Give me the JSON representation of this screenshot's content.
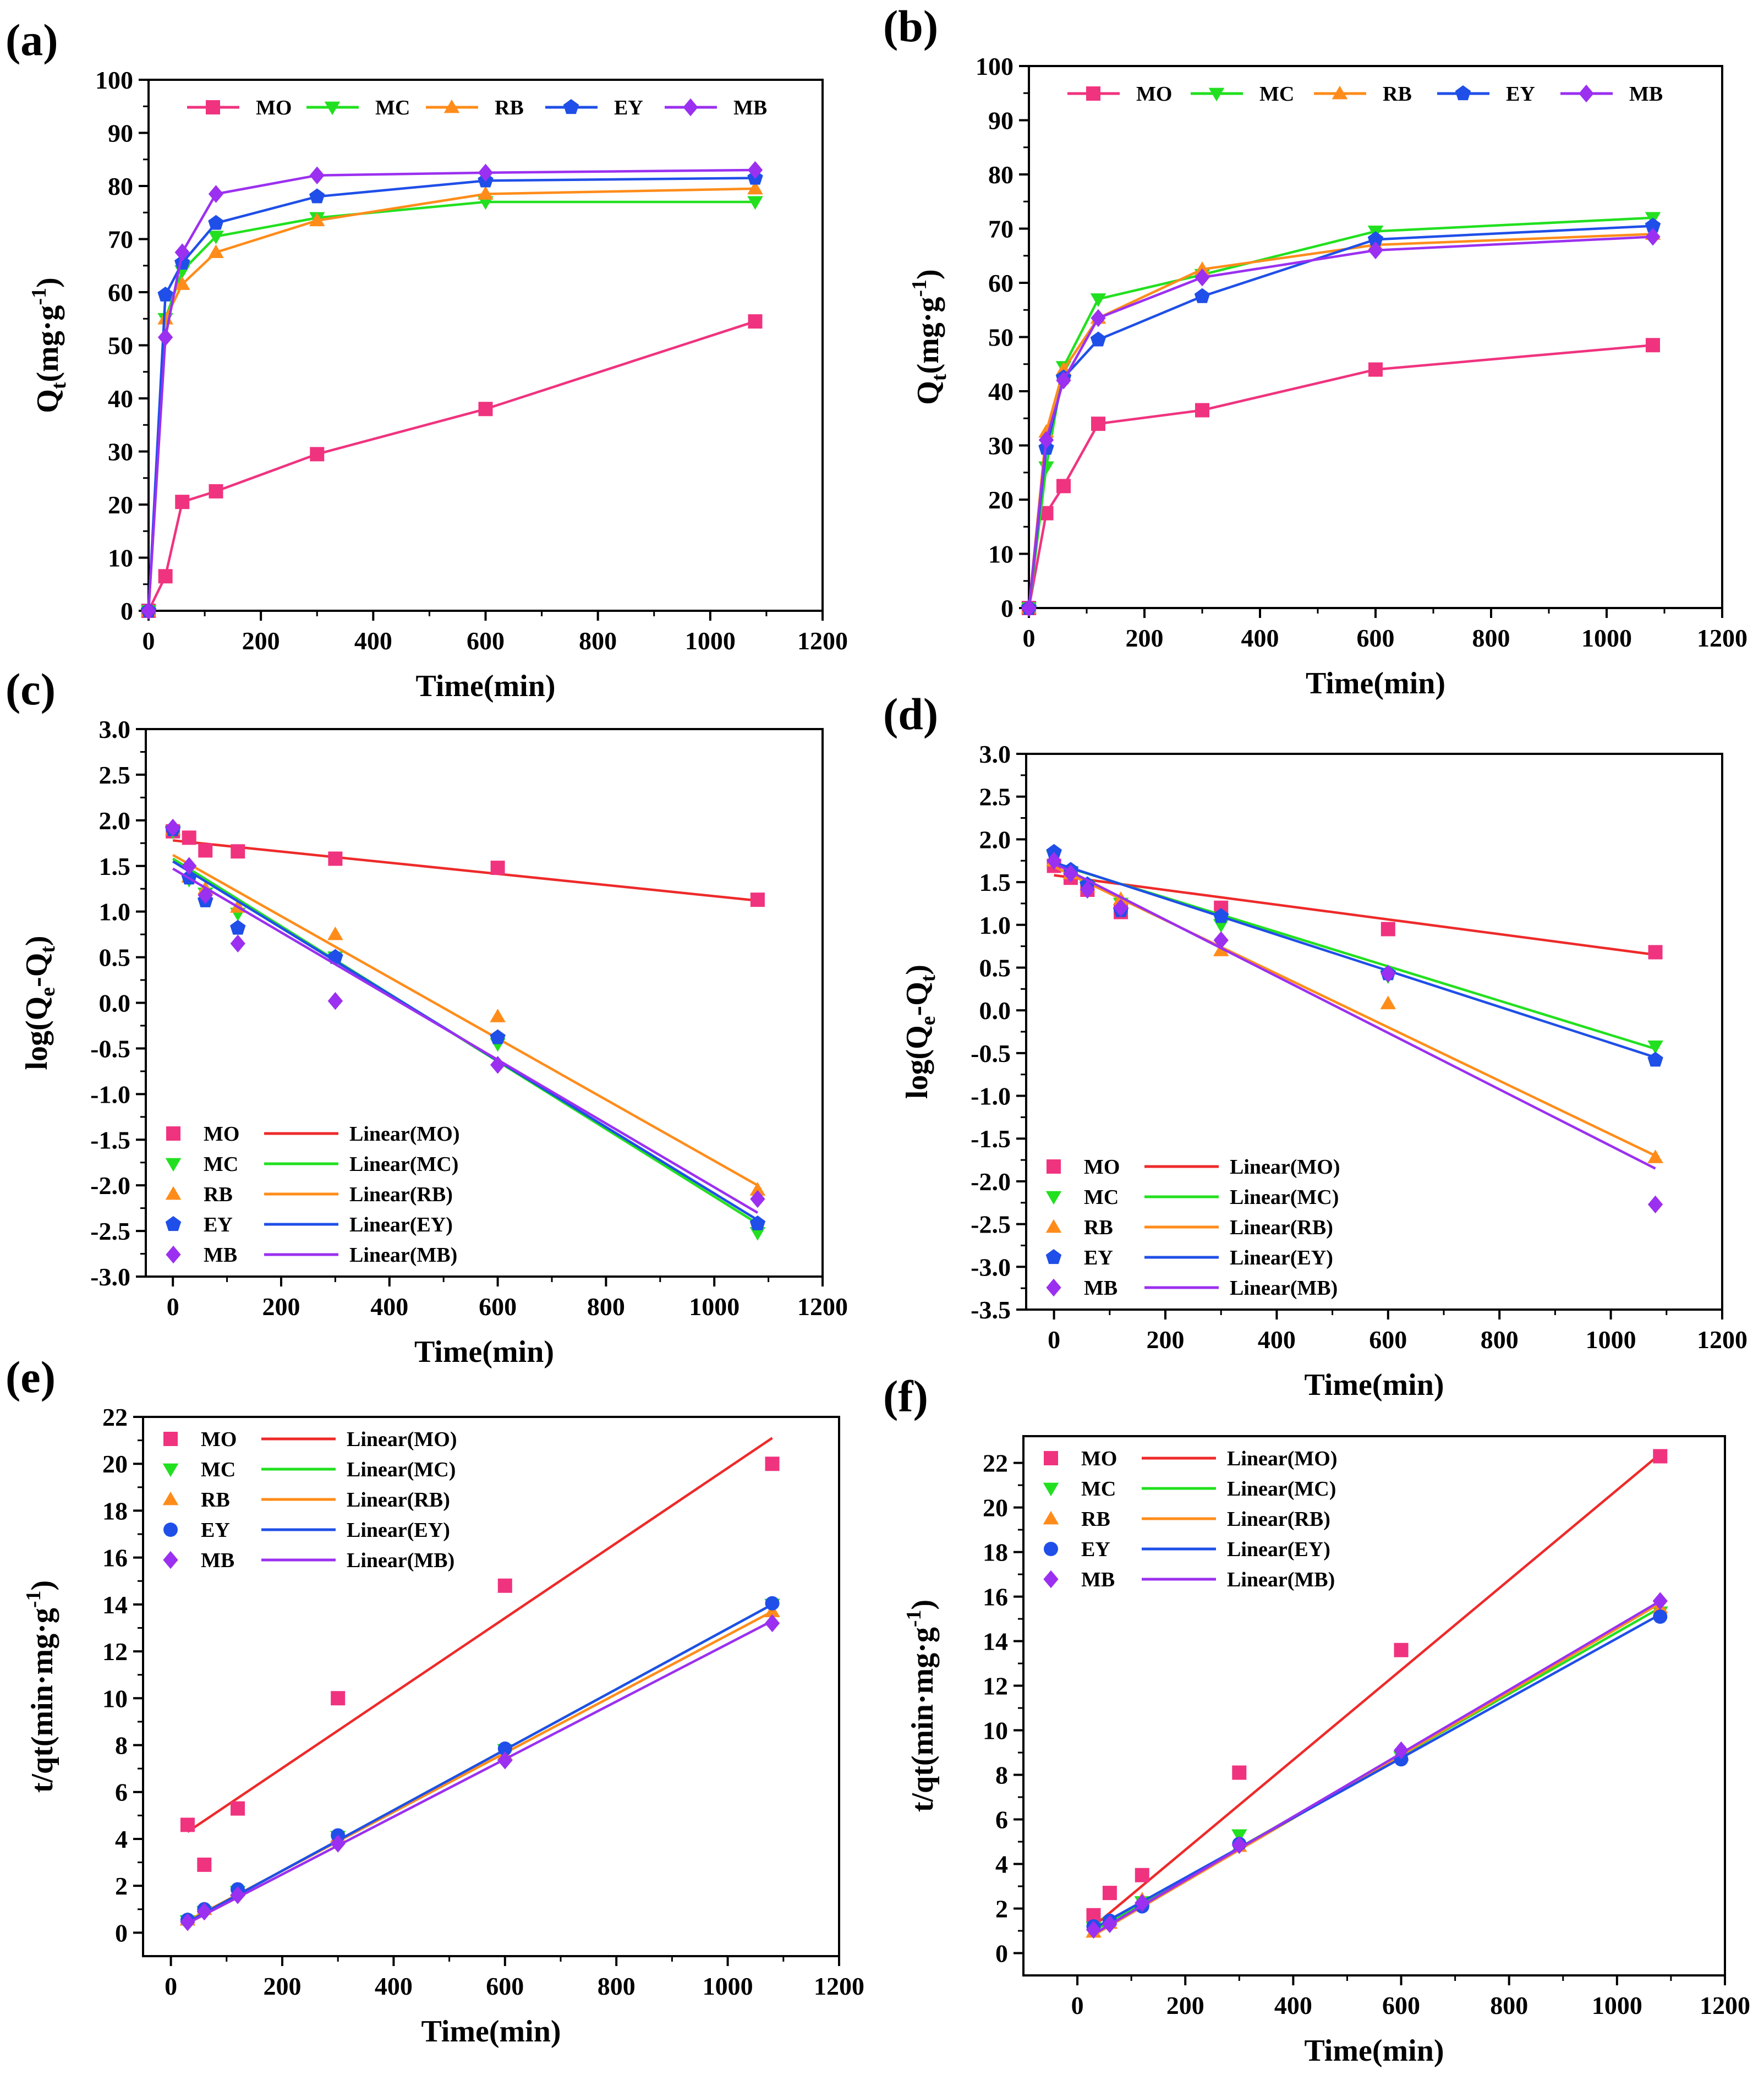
{
  "colors": {
    "MO": "#f0337f",
    "MC": "#22e01f",
    "RB": "#ff8c1a",
    "EY": "#1f4fe8",
    "MB": "#9b30f0",
    "MO_line": "#ee2a2a"
  },
  "chart_data": [
    {
      "panel": "(a)",
      "type": "line",
      "xlabel": "Time(min)",
      "ylabel_main": "Q",
      "ylabel_sub": "t",
      "ylabel_rest": "(mg·g",
      "ylabel_sup": "-1",
      "ylabel_end": ")",
      "xlim": [
        0,
        1200
      ],
      "ylim": [
        0,
        100
      ],
      "xticks": [
        0,
        200,
        400,
        600,
        800,
        1000,
        1200
      ],
      "yticks": [
        0,
        10,
        20,
        30,
        40,
        50,
        60,
        70,
        80,
        90,
        100
      ],
      "legend_layout": "row",
      "legend_position": "top",
      "x": [
        0,
        30,
        60,
        120,
        300,
        600,
        1080
      ],
      "series": [
        {
          "name": "MO",
          "marker": "square",
          "values": [
            0,
            6.5,
            20.5,
            22.5,
            29.5,
            38,
            54.5
          ]
        },
        {
          "name": "MC",
          "marker": "triangle-down",
          "values": [
            0,
            55,
            64,
            70.5,
            74,
            77,
            77
          ]
        },
        {
          "name": "RB",
          "marker": "triangle-up",
          "values": [
            0,
            55,
            61.5,
            67.5,
            73.5,
            78.5,
            79.5
          ]
        },
        {
          "name": "EY",
          "marker": "pentagon",
          "values": [
            0,
            59.5,
            65.5,
            73,
            78,
            81,
            81.5
          ]
        },
        {
          "name": "MB",
          "marker": "diamond",
          "values": [
            0,
            51.5,
            67.5,
            78.5,
            82,
            82.5,
            83
          ]
        }
      ]
    },
    {
      "panel": "(b)",
      "type": "line",
      "xlabel": "Time(min)",
      "ylabel_main": "Q",
      "ylabel_sub": "t",
      "ylabel_rest": "(mg·g",
      "ylabel_sup": "-1",
      "ylabel_end": ")",
      "xlim": [
        0,
        1200
      ],
      "ylim": [
        0,
        100
      ],
      "xticks": [
        0,
        200,
        400,
        600,
        800,
        1000,
        1200
      ],
      "yticks": [
        0,
        10,
        20,
        30,
        40,
        50,
        60,
        70,
        80,
        90,
        100
      ],
      "legend_layout": "row",
      "legend_position": "top",
      "x": [
        0,
        30,
        60,
        120,
        300,
        600,
        1080
      ],
      "series": [
        {
          "name": "MO",
          "marker": "square",
          "values": [
            0,
            17.5,
            22.5,
            34,
            36.5,
            44,
            48.5
          ]
        },
        {
          "name": "MC",
          "marker": "triangle-down",
          "values": [
            0,
            26,
            44.5,
            57,
            61.5,
            69.5,
            72
          ]
        },
        {
          "name": "RB",
          "marker": "triangle-up",
          "values": [
            0,
            32.5,
            44,
            53.5,
            62.5,
            67,
            69
          ]
        },
        {
          "name": "EY",
          "marker": "pentagon",
          "values": [
            0,
            29.5,
            42.5,
            49.5,
            57.5,
            68,
            70.5
          ]
        },
        {
          "name": "MB",
          "marker": "diamond",
          "values": [
            0,
            31,
            42,
            53.5,
            61,
            66,
            68.5
          ]
        }
      ]
    },
    {
      "panel": "(c)",
      "type": "scatter",
      "xlabel": "Time(min)",
      "ylabel_main": "log(Q",
      "ylabel_sub": "e",
      "ylabel_rest": "-Q",
      "ylabel_sub2": "t",
      "ylabel_end": ")",
      "xlim": [
        -50,
        1200
      ],
      "ylim": [
        -3.0,
        3.0
      ],
      "xticks": [
        0,
        200,
        400,
        600,
        800,
        1000,
        1200
      ],
      "yticks": [
        -3.0,
        -2.5,
        -2.0,
        -1.5,
        -1.0,
        -0.5,
        0.0,
        0.5,
        1.0,
        1.5,
        2.0,
        2.5,
        3.0
      ],
      "legend_layout": "grid",
      "legend_position": "bottom-left",
      "x": [
        0,
        30,
        60,
        120,
        300,
        600,
        1080
      ],
      "series": [
        {
          "name": "MO",
          "marker": "square",
          "values": [
            1.88,
            1.81,
            1.67,
            1.66,
            1.58,
            1.48,
            1.13
          ],
          "fit_name": "Linear(MO)",
          "fit": [
            1.78,
            1.12
          ]
        },
        {
          "name": "MC",
          "marker": "triangle-down",
          "values": [
            1.88,
            1.35,
            1.2,
            0.98,
            0.5,
            -0.45,
            -2.52
          ],
          "fit_name": "Linear(MC)",
          "fit": [
            1.58,
            -2.42
          ]
        },
        {
          "name": "RB",
          "marker": "triangle-up",
          "values": [
            1.9,
            1.38,
            1.25,
            1.05,
            0.75,
            -0.15,
            -2.05
          ],
          "fit_name": "Linear(RB)",
          "fit": [
            1.62,
            -2.0
          ]
        },
        {
          "name": "EY",
          "marker": "pentagon",
          "values": [
            1.9,
            1.37,
            1.12,
            0.82,
            0.5,
            -0.38,
            -2.42
          ],
          "fit_name": "Linear(EY)",
          "fit": [
            1.55,
            -2.38
          ]
        },
        {
          "name": "MB",
          "marker": "diamond",
          "values": [
            1.92,
            1.5,
            1.18,
            0.65,
            0.02,
            -0.68,
            -2.15
          ],
          "fit_name": "Linear(MB)",
          "fit": [
            1.47,
            -2.3
          ]
        }
      ]
    },
    {
      "panel": "(d)",
      "type": "scatter",
      "xlabel": "Time(min)",
      "ylabel_main": "log(Q",
      "ylabel_sub": "e",
      "ylabel_rest": "-Q",
      "ylabel_sub2": "t",
      "ylabel_end": ")",
      "xlim": [
        -50,
        1200
      ],
      "ylim": [
        -3.5,
        3.0
      ],
      "xticks": [
        0,
        200,
        400,
        600,
        800,
        1000,
        1200
      ],
      "yticks": [
        -3.5,
        -3.0,
        -2.5,
        -2.0,
        -1.5,
        -1.0,
        -0.5,
        0.0,
        0.5,
        1.0,
        1.5,
        2.0,
        2.5,
        3.0
      ],
      "legend_layout": "grid",
      "legend_position": "bottom-left",
      "x": [
        0,
        30,
        60,
        120,
        300,
        600,
        1080
      ],
      "series": [
        {
          "name": "MO",
          "marker": "square",
          "values": [
            1.69,
            1.55,
            1.41,
            1.15,
            1.2,
            0.95,
            0.68
          ],
          "fit_name": "Linear(MO)",
          "fit": [
            1.58,
            0.65
          ]
        },
        {
          "name": "MC",
          "marker": "triangle-down",
          "values": [
            1.8,
            1.62,
            1.45,
            1.25,
            1.0,
            0.4,
            -0.42
          ],
          "fit_name": "Linear(MC)",
          "fit": [
            1.72,
            -0.45
          ]
        },
        {
          "name": "RB",
          "marker": "triangle-up",
          "values": [
            1.75,
            1.6,
            1.45,
            1.3,
            0.7,
            0.08,
            -1.72
          ],
          "fit_name": "Linear(RB)",
          "fit": [
            1.68,
            -1.7
          ]
        },
        {
          "name": "EY",
          "marker": "pentagon",
          "values": [
            1.85,
            1.64,
            1.47,
            1.17,
            1.1,
            0.43,
            -0.58
          ],
          "fit_name": "Linear(EY)",
          "fit": [
            1.73,
            -0.55
          ]
        },
        {
          "name": "MB",
          "marker": "diamond",
          "values": [
            1.75,
            1.6,
            1.41,
            1.2,
            0.82,
            0.43,
            -2.27
          ],
          "fit_name": "Linear(MB)",
          "fit": [
            1.72,
            -1.85
          ]
        }
      ]
    },
    {
      "panel": "(e)",
      "type": "scatter",
      "xlabel": "Time(min)",
      "ylabel_main": "t/qt(min·mg·g",
      "ylabel_sup": "-1",
      "ylabel_end": ")",
      "xlim": [
        -50,
        1200
      ],
      "ylim": [
        -1,
        22
      ],
      "xticks": [
        0,
        200,
        400,
        600,
        800,
        1000,
        1200
      ],
      "yticks": [
        0,
        2,
        4,
        6,
        8,
        10,
        12,
        14,
        16,
        18,
        20,
        22
      ],
      "legend_layout": "grid",
      "legend_position": "top-left",
      "x": [
        30,
        60,
        120,
        300,
        600,
        1080
      ],
      "series": [
        {
          "name": "MO",
          "marker": "square",
          "values": [
            4.6,
            2.9,
            5.3,
            10.0,
            14.8,
            20.0
          ],
          "fit_name": "Linear(MO)",
          "fit": [
            4.3,
            21.1
          ]
        },
        {
          "name": "MC",
          "marker": "triangle-down",
          "values": [
            0.5,
            0.9,
            1.75,
            4.1,
            7.8,
            14.0
          ],
          "fit_name": "Linear(MC)",
          "fit": [
            0.45,
            14.0
          ]
        },
        {
          "name": "RB",
          "marker": "triangle-up",
          "values": [
            0.55,
            1.0,
            1.8,
            4.1,
            7.6,
            13.7
          ],
          "fit_name": "Linear(RB)",
          "fit": [
            0.5,
            13.7
          ]
        },
        {
          "name": "EY",
          "marker": "circle",
          "values": [
            0.55,
            1.0,
            1.85,
            4.15,
            7.85,
            14.05
          ],
          "fit_name": "Linear(EY)",
          "fit": [
            0.45,
            14.0
          ]
        },
        {
          "name": "MB",
          "marker": "diamond",
          "values": [
            0.45,
            0.9,
            1.6,
            3.8,
            7.35,
            13.2
          ],
          "fit_name": "Linear(MB)",
          "fit": [
            0.4,
            13.3
          ]
        }
      ]
    },
    {
      "panel": "(f)",
      "type": "scatter",
      "xlabel": "Time(min)",
      "ylabel_main": "t/qt(min·mg·g",
      "ylabel_sup": "-1",
      "ylabel_end": ")",
      "xlim": [
        -100,
        1200
      ],
      "ylim": [
        -1,
        23.2
      ],
      "xticks": [
        0,
        200,
        400,
        600,
        800,
        1000,
        1200
      ],
      "yticks": [
        0,
        2,
        4,
        6,
        8,
        10,
        12,
        14,
        16,
        18,
        20,
        22
      ],
      "legend_layout": "grid",
      "legend_position": "top-left",
      "x": [
        30,
        60,
        120,
        300,
        600,
        1080
      ],
      "series": [
        {
          "name": "MO",
          "marker": "square",
          "values": [
            1.7,
            2.7,
            3.5,
            8.1,
            13.6,
            22.3
          ],
          "fit_name": "Linear(MO)",
          "fit": [
            1.2,
            22.4
          ]
        },
        {
          "name": "MC",
          "marker": "triangle-down",
          "values": [
            1.15,
            1.35,
            2.3,
            5.3,
            8.8,
            15.3
          ],
          "fit_name": "Linear(MC)",
          "fit": [
            1.0,
            15.5
          ]
        },
        {
          "name": "RB",
          "marker": "triangle-up",
          "values": [
            0.95,
            1.35,
            2.4,
            4.8,
            8.9,
            15.5
          ],
          "fit_name": "Linear(RB)",
          "fit": [
            0.8,
            15.7
          ]
        },
        {
          "name": "EY",
          "marker": "circle",
          "values": [
            1.2,
            1.45,
            2.1,
            4.9,
            8.7,
            15.1
          ],
          "fit_name": "Linear(EY)",
          "fit": [
            1.1,
            15.2
          ]
        },
        {
          "name": "MB",
          "marker": "diamond",
          "values": [
            1.05,
            1.3,
            2.25,
            4.85,
            9.1,
            15.8
          ],
          "fit_name": "Linear(MB)",
          "fit": [
            0.85,
            15.8
          ]
        }
      ]
    }
  ]
}
